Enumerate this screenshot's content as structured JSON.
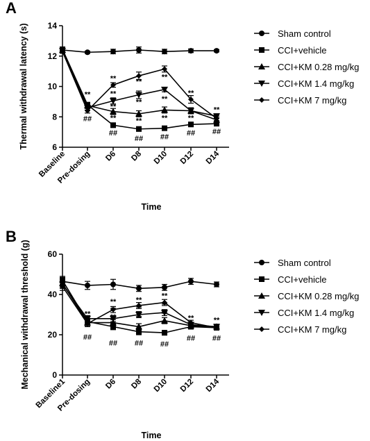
{
  "chart_data": [
    {
      "panel": "A",
      "type": "line",
      "xlabel": "Time",
      "ylabel": "Thermal withdrawal latency (s)",
      "ylim": [
        6,
        14
      ],
      "yticks": [
        6,
        8,
        10,
        12,
        14
      ],
      "categories": [
        "Baseline",
        "Pre-dosing",
        "D6",
        "D8",
        "D10",
        "D12",
        "D14"
      ],
      "legend_position": "right",
      "series": [
        {
          "name": "Sham control",
          "marker": "circle",
          "values": [
            12.4,
            12.25,
            12.3,
            12.4,
            12.3,
            12.35,
            12.35
          ],
          "errors": [
            0.1,
            0.08,
            0.15,
            0.2,
            0.15,
            0.12,
            0.08
          ]
        },
        {
          "name": "CCI+vehicle",
          "marker": "square",
          "values": [
            12.45,
            8.8,
            7.45,
            7.2,
            7.25,
            7.5,
            7.55
          ],
          "errors": [
            0.12,
            0.15,
            0.15,
            0.15,
            0.1,
            0.15,
            0.15
          ]
        },
        {
          "name": "CCI+KM 0.28 mg/kg",
          "marker": "triangle-up",
          "values": [
            12.4,
            8.75,
            8.35,
            8.2,
            8.45,
            8.4,
            7.8
          ],
          "errors": [
            0.12,
            0.15,
            0.2,
            0.2,
            0.2,
            0.2,
            0.15
          ]
        },
        {
          "name": "CCI+KM 1.4 mg/kg",
          "marker": "triangle-down",
          "values": [
            12.35,
            8.6,
            9.05,
            9.45,
            9.8,
            8.4,
            8.05
          ],
          "errors": [
            0.12,
            0.15,
            0.2,
            0.25,
            0.15,
            0.2,
            0.15
          ]
        },
        {
          "name": "CCI+KM 7 mg/kg",
          "marker": "diamond",
          "values": [
            12.3,
            8.4,
            10.1,
            10.7,
            11.15,
            9.15,
            7.9
          ],
          "errors": [
            0.12,
            0.15,
            0.15,
            0.25,
            0.2,
            0.25,
            0.15
          ]
        }
      ],
      "annotations": [
        {
          "x": "Pre-dosing",
          "y": 9.5,
          "text": "**"
        },
        {
          "x": "Pre-dosing",
          "y": 7.9,
          "text": "##"
        },
        {
          "x": "D6",
          "y": 10.55,
          "text": "**"
        },
        {
          "x": "D6",
          "y": 9.55,
          "text": "**"
        },
        {
          "x": "D6",
          "y": 8.7,
          "text": "**"
        },
        {
          "x": "D6",
          "y": 7.95,
          "text": "**"
        },
        {
          "x": "D6",
          "y": 6.95,
          "text": "##"
        },
        {
          "x": "D8",
          "y": 10.35,
          "text": "**"
        },
        {
          "x": "D8",
          "y": 9.0,
          "text": "**"
        },
        {
          "x": "D8",
          "y": 7.75,
          "text": "**"
        },
        {
          "x": "D8",
          "y": 6.6,
          "text": "##"
        },
        {
          "x": "D10",
          "y": 10.65,
          "text": "**"
        },
        {
          "x": "D10",
          "y": 9.2,
          "text": "**"
        },
        {
          "x": "D10",
          "y": 7.95,
          "text": "**"
        },
        {
          "x": "D10",
          "y": 6.7,
          "text": "##"
        },
        {
          "x": "D12",
          "y": 9.6,
          "text": "**"
        },
        {
          "x": "D12",
          "y": 7.95,
          "text": "**"
        },
        {
          "x": "D12",
          "y": 6.95,
          "text": "##"
        },
        {
          "x": "D14",
          "y": 8.5,
          "text": "**"
        },
        {
          "x": "D14",
          "y": 7.05,
          "text": "##"
        }
      ]
    },
    {
      "panel": "B",
      "type": "line",
      "xlabel": "Time",
      "ylabel": "Mechanical withdrawal threshold (g)",
      "ylim": [
        0,
        60
      ],
      "yticks": [
        0,
        20,
        40,
        60
      ],
      "categories": [
        "Baseline1",
        "Pre-dosing",
        "D6",
        "D8",
        "D10",
        "D12",
        "D14"
      ],
      "legend_position": "right",
      "series": [
        {
          "name": "Sham control",
          "marker": "circle",
          "values": [
            46.5,
            44.5,
            45.0,
            43.0,
            43.5,
            46.5,
            45.0
          ],
          "errors": [
            2.0,
            2.0,
            2.5,
            1.5,
            1.5,
            1.5,
            1.2
          ]
        },
        {
          "name": "CCI+vehicle",
          "marker": "square",
          "values": [
            47.0,
            26.5,
            24.0,
            21.5,
            21.0,
            24.0,
            23.5
          ],
          "errors": [
            2.0,
            1.5,
            1.5,
            1.5,
            1.2,
            1.2,
            1.2
          ]
        },
        {
          "name": "CCI+KM 0.28 mg/kg",
          "marker": "triangle-up",
          "values": [
            45.5,
            26.0,
            26.0,
            24.0,
            27.0,
            24.5,
            24.0
          ],
          "errors": [
            2.0,
            1.5,
            1.5,
            1.5,
            1.5,
            1.2,
            1.2
          ]
        },
        {
          "name": "CCI+KM 1.4 mg/kg",
          "marker": "triangle-down",
          "values": [
            45.0,
            28.0,
            28.0,
            30.0,
            31.0,
            25.0,
            24.0
          ],
          "errors": [
            2.0,
            1.5,
            1.5,
            1.5,
            1.5,
            1.2,
            1.2
          ]
        },
        {
          "name": "CCI+KM 7 mg/kg",
          "marker": "diamond",
          "values": [
            44.0,
            25.5,
            32.5,
            34.5,
            36.0,
            26.0,
            23.5
          ],
          "errors": [
            2.0,
            1.5,
            1.5,
            1.5,
            1.5,
            1.2,
            1.2
          ]
        }
      ],
      "annotations": [
        {
          "x": "Pre-dosing",
          "y": 30.5,
          "text": "**"
        },
        {
          "x": "Pre-dosing",
          "y": 19.0,
          "text": "##"
        },
        {
          "x": "D6",
          "y": 36.5,
          "text": "**"
        },
        {
          "x": "D6",
          "y": 32.5,
          "text": "**"
        },
        {
          "x": "D6",
          "y": 29.0,
          "text": "**"
        },
        {
          "x": "D6",
          "y": 16.0,
          "text": "##"
        },
        {
          "x": "D8",
          "y": 37.5,
          "text": "**"
        },
        {
          "x": "D8",
          "y": 33.5,
          "text": "**"
        },
        {
          "x": "D8",
          "y": 28.5,
          "text": "**"
        },
        {
          "x": "D8",
          "y": 16.0,
          "text": "##"
        },
        {
          "x": "D8",
          "y": 20.0,
          "text": "**"
        },
        {
          "x": "D10",
          "y": 39.5,
          "text": "**"
        },
        {
          "x": "D10",
          "y": 35.0,
          "text": "**"
        },
        {
          "x": "D10",
          "y": 30.5,
          "text": "**"
        },
        {
          "x": "D10",
          "y": 25.5,
          "text": "**"
        },
        {
          "x": "D10",
          "y": 15.5,
          "text": "##"
        },
        {
          "x": "D12",
          "y": 28.5,
          "text": "**"
        },
        {
          "x": "D12",
          "y": 18.5,
          "text": "##"
        },
        {
          "x": "D14",
          "y": 27.5,
          "text": "**"
        },
        {
          "x": "D14",
          "y": 18.5,
          "text": "##"
        }
      ]
    }
  ]
}
